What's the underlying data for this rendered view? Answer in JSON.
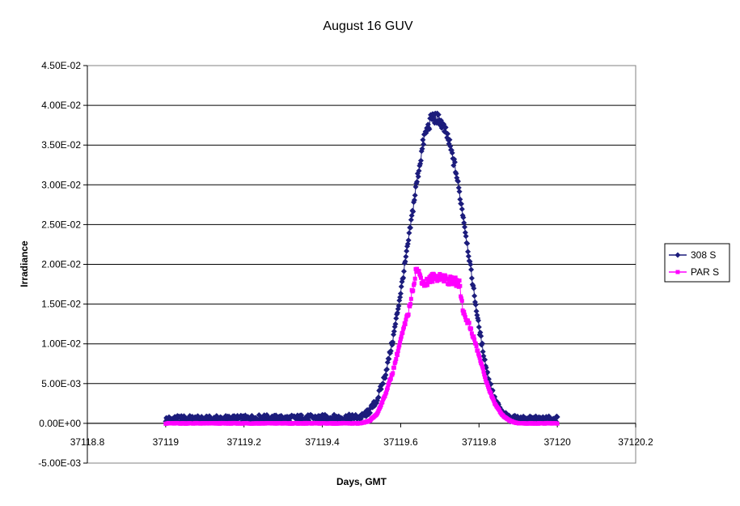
{
  "chart_data": {
    "type": "scatter",
    "title": "August 16 GUV",
    "xlabel": "Days, GMT",
    "ylabel": "Irradiance",
    "xlim": [
      37118.8,
      37120.2
    ],
    "ylim": [
      -0.005,
      0.045
    ],
    "x_ticks": [
      37118.8,
      37119,
      37119.2,
      37119.4,
      37119.6,
      37119.8,
      37120,
      37120.2
    ],
    "x_tick_labels": [
      "37118.8",
      "37119",
      "37119.2",
      "37119.4",
      "37119.6",
      "37119.8",
      "37120",
      "37120.2"
    ],
    "y_ticks": [
      -0.005,
      0,
      0.005,
      0.01,
      0.015,
      0.02,
      0.025,
      0.03,
      0.035,
      0.04,
      0.045
    ],
    "y_tick_labels": [
      "-5.00E-03",
      "0.00E+00",
      "5.00E-03",
      "1.00E-02",
      "1.50E-02",
      "2.00E-02",
      "2.50E-02",
      "3.00E-02",
      "3.50E-02",
      "4.00E-02",
      "4.50E-02"
    ],
    "grid": "horizontal",
    "legend_position": "right",
    "series": [
      {
        "name": "308 S",
        "color": "#1c1c7c",
        "marker": "diamond",
        "points": [
          [
            37119.0,
            0.0005
          ],
          [
            37119.05,
            0.0006
          ],
          [
            37119.1,
            0.0005
          ],
          [
            37119.15,
            0.0006
          ],
          [
            37119.2,
            0.0006
          ],
          [
            37119.25,
            0.0007
          ],
          [
            37119.3,
            0.0006
          ],
          [
            37119.35,
            0.0007
          ],
          [
            37119.4,
            0.0007
          ],
          [
            37119.45,
            0.0007
          ],
          [
            37119.5,
            0.0008
          ],
          [
            37119.52,
            0.0015
          ],
          [
            37119.54,
            0.003
          ],
          [
            37119.56,
            0.006
          ],
          [
            37119.58,
            0.0105
          ],
          [
            37119.6,
            0.0165
          ],
          [
            37119.62,
            0.023
          ],
          [
            37119.64,
            0.03
          ],
          [
            37119.66,
            0.036
          ],
          [
            37119.68,
            0.0385
          ],
          [
            37119.7,
            0.0382
          ],
          [
            37119.72,
            0.036
          ],
          [
            37119.74,
            0.032
          ],
          [
            37119.76,
            0.026
          ],
          [
            37119.78,
            0.019
          ],
          [
            37119.8,
            0.012
          ],
          [
            37119.82,
            0.0065
          ],
          [
            37119.84,
            0.003
          ],
          [
            37119.86,
            0.0012
          ],
          [
            37119.88,
            0.0006
          ],
          [
            37119.92,
            0.0005
          ],
          [
            37119.96,
            0.0005
          ],
          [
            37120.0,
            0.0005
          ]
        ]
      },
      {
        "name": "PAR S",
        "color": "#ff00ff",
        "marker": "square",
        "points": [
          [
            37119.0,
            0.0
          ],
          [
            37119.1,
            0.0
          ],
          [
            37119.2,
            0.0
          ],
          [
            37119.3,
            0.0
          ],
          [
            37119.4,
            0.0
          ],
          [
            37119.5,
            0.0
          ],
          [
            37119.52,
            0.0003
          ],
          [
            37119.54,
            0.0012
          ],
          [
            37119.56,
            0.0035
          ],
          [
            37119.58,
            0.0065
          ],
          [
            37119.6,
            0.0105
          ],
          [
            37119.62,
            0.014
          ],
          [
            37119.64,
            0.0195
          ],
          [
            37119.66,
            0.0175
          ],
          [
            37119.68,
            0.0183
          ],
          [
            37119.7,
            0.0185
          ],
          [
            37119.72,
            0.018
          ],
          [
            37119.74,
            0.0178
          ],
          [
            37119.75,
            0.0175
          ],
          [
            37119.76,
            0.014
          ],
          [
            37119.78,
            0.0118
          ],
          [
            37119.8,
            0.0085
          ],
          [
            37119.82,
            0.005
          ],
          [
            37119.84,
            0.0025
          ],
          [
            37119.86,
            0.001
          ],
          [
            37119.88,
            0.0003
          ],
          [
            37119.9,
            0.0
          ],
          [
            37119.95,
            0.0
          ],
          [
            37120.0,
            0.0
          ]
        ]
      }
    ]
  }
}
